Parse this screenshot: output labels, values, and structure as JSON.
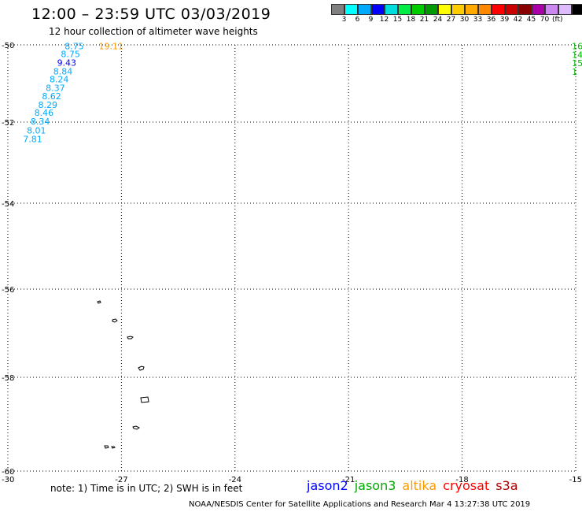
{
  "header": {
    "title": "12:00 – 23:59 UTC 03/03/2019",
    "subtitle": "12 hour collection of altimeter wave heights"
  },
  "color_scale": {
    "colors": [
      "#808080",
      "#00ffff",
      "#00aaff",
      "#0000ff",
      "#00dddd",
      "#00ee44",
      "#00cc00",
      "#009900",
      "#ffff00",
      "#ffcc00",
      "#ffaa00",
      "#ff8800",
      "#ff0000",
      "#cc0000",
      "#880000",
      "#aa00aa",
      "#cc88ee",
      "#ddbbff",
      "#000000"
    ],
    "tick_labels": [
      "3",
      "6",
      "9",
      "12",
      "15",
      "18",
      "21",
      "24",
      "27",
      "30",
      "33",
      "36",
      "39",
      "42",
      "45",
      "70"
    ],
    "unit": "(ft)"
  },
  "axes": {
    "lat_labels": [
      "-50",
      "-52",
      "-54",
      "-56",
      "-58",
      "-60"
    ],
    "lon_labels": [
      "-30",
      "-27",
      "-24",
      "-21",
      "-18",
      "-15"
    ]
  },
  "observations": [
    {
      "lat": -50.03,
      "lon": -28.5,
      "value": "8.75",
      "color": "#00aaff"
    },
    {
      "lat": -50.23,
      "lon": -28.6,
      "value": "8.75",
      "color": "#00aaff"
    },
    {
      "lat": -50.46,
      "lon": -28.7,
      "value": "9.43",
      "color": "#0000ff"
    },
    {
      "lat": -50.68,
      "lon": -28.8,
      "value": "8.84",
      "color": "#00aaff"
    },
    {
      "lat": -50.89,
      "lon": -28.9,
      "value": "8.24",
      "color": "#00aaff"
    },
    {
      "lat": -51.11,
      "lon": -29.0,
      "value": "8.37",
      "color": "#00aaff"
    },
    {
      "lat": -51.33,
      "lon": -29.1,
      "value": "8.62",
      "color": "#00aaff"
    },
    {
      "lat": -51.55,
      "lon": -29.2,
      "value": "8.29",
      "color": "#00aaff"
    },
    {
      "lat": -51.76,
      "lon": -29.3,
      "value": "8.46",
      "color": "#00aaff"
    },
    {
      "lat": -51.98,
      "lon": -29.4,
      "value": "8.34",
      "color": "#00aaff"
    },
    {
      "lat": -52.2,
      "lon": -29.5,
      "value": "8.01",
      "color": "#00aaff"
    },
    {
      "lat": -52.42,
      "lon": -29.6,
      "value": "7.81",
      "color": "#00aaff"
    },
    {
      "lat": -50.03,
      "lon": -27.6,
      "value": "19.11",
      "color": "#ff9900"
    },
    {
      "lat": -50.03,
      "lon": -15.1,
      "value": "16",
      "color": "#00bb00"
    },
    {
      "lat": -50.25,
      "lon": -15.1,
      "value": "14",
      "color": "#00bb00"
    },
    {
      "lat": -50.47,
      "lon": -15.1,
      "value": "15",
      "color": "#00bb00"
    },
    {
      "lat": -50.69,
      "lon": -15.1,
      "value": "1",
      "color": "#00bb00"
    }
  ],
  "footer": {
    "note": "note: 1) Time is in UTC; 2) SWH is in feet",
    "legend": [
      {
        "label": "jason2",
        "color": "#0000ff"
      },
      {
        "label": "jason3",
        "color": "#00aa00"
      },
      {
        "label": "altika",
        "color": "#ff9900"
      },
      {
        "label": "cryosat",
        "color": "#ff0000"
      },
      {
        "label": "s3a",
        "color": "#aa0000"
      }
    ],
    "credit": "NOAA/NESDIS Center for Satellite Applications and Research    Mar  4 13:27:38 UTC 2019"
  }
}
